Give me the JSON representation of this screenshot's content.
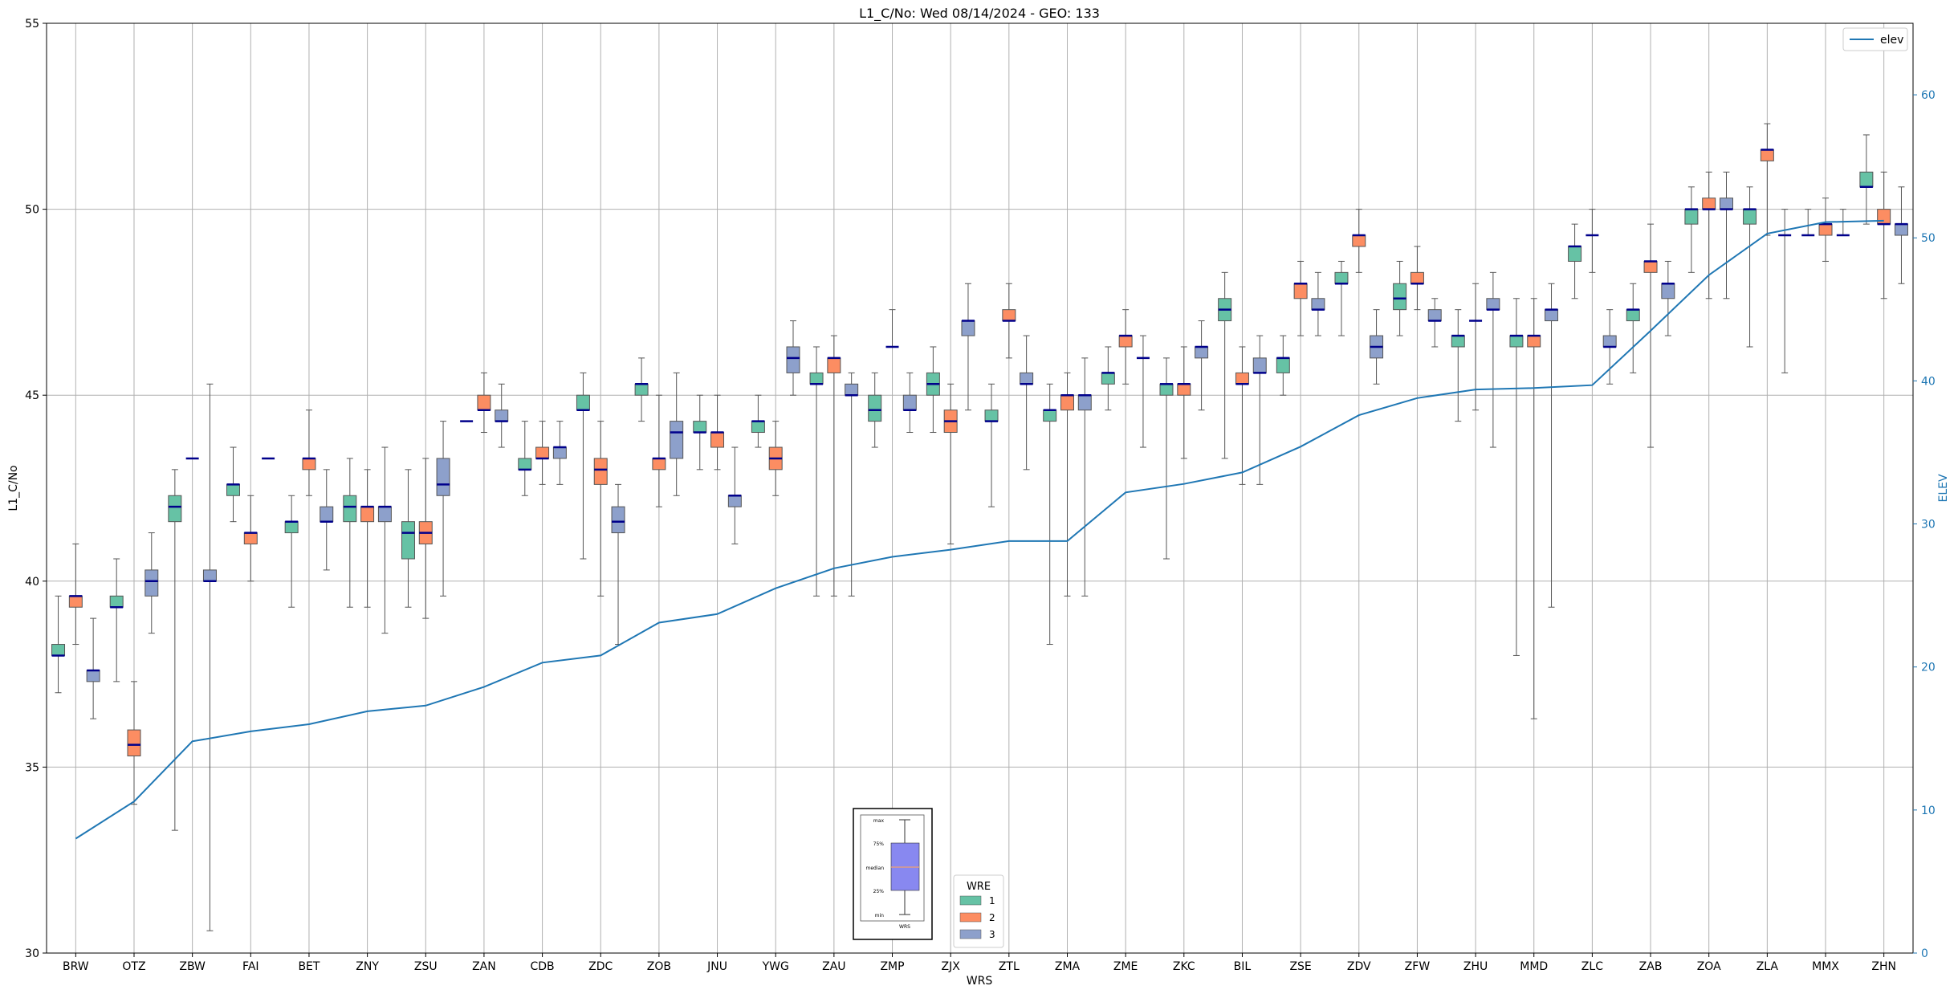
{
  "chart_data": {
    "type": "box",
    "title": "L1_C/No: Wed 08/14/2024 - GEO: 133",
    "xlabel": "WRS",
    "ylabel": "L1_C/No",
    "y2label": "ELEV",
    "ylim": [
      30,
      55
    ],
    "y2lim": [
      0,
      65
    ],
    "yticks": [
      30,
      35,
      40,
      45,
      50,
      55
    ],
    "y2ticks": [
      0,
      10,
      20,
      30,
      40,
      50,
      60
    ],
    "grid": true,
    "categories": [
      "BRW",
      "OTZ",
      "ZBW",
      "FAI",
      "BET",
      "ZNY",
      "ZSU",
      "ZAN",
      "CDB",
      "ZDC",
      "ZOB",
      "JNU",
      "YWG",
      "ZAU",
      "ZMP",
      "ZJX",
      "ZTL",
      "ZMA",
      "ZME",
      "ZKC",
      "BIL",
      "ZSE",
      "ZDV",
      "ZFW",
      "ZHU",
      "MMD",
      "ZLC",
      "ZAB",
      "ZOA",
      "ZLA",
      "MMX",
      "ZHN"
    ],
    "colors": {
      "wre1": "#66c2a5",
      "wre2": "#fc8d62",
      "wre3": "#8da0cb",
      "median": "#00008b",
      "elev": "#1f77b4"
    },
    "series": [
      {
        "name": "1",
        "boxes": [
          {
            "min": 37.0,
            "q1": 38.0,
            "median": 38.0,
            "q3": 38.3,
            "max": 39.6
          },
          {
            "min": 37.3,
            "q1": 39.3,
            "median": 39.3,
            "q3": 39.6,
            "max": 40.6
          },
          {
            "min": 33.3,
            "q1": 41.6,
            "median": 42.0,
            "q3": 42.3,
            "max": 43.0
          },
          {
            "min": 41.6,
            "q1": 42.3,
            "median": 42.6,
            "q3": 42.6,
            "max": 43.6
          },
          {
            "min": 39.3,
            "q1": 41.3,
            "median": 41.6,
            "q3": 41.6,
            "max": 42.3
          },
          {
            "min": 39.3,
            "q1": 41.6,
            "median": 42.0,
            "q3": 42.3,
            "max": 43.3
          },
          {
            "min": 39.3,
            "q1": 40.6,
            "median": 41.3,
            "q3": 41.6,
            "max": 43.0
          },
          {
            "min": 44.3,
            "q1": 44.3,
            "median": 44.3,
            "q3": 44.3,
            "max": 44.3
          },
          {
            "min": 42.3,
            "q1": 43.0,
            "median": 43.0,
            "q3": 43.3,
            "max": 44.3
          },
          {
            "min": 40.6,
            "q1": 44.6,
            "median": 44.6,
            "q3": 45.0,
            "max": 45.6
          },
          {
            "min": 44.3,
            "q1": 45.0,
            "median": 45.3,
            "q3": 45.3,
            "max": 46.0
          },
          {
            "min": 43.0,
            "q1": 44.0,
            "median": 44.0,
            "q3": 44.3,
            "max": 45.0
          },
          {
            "min": 43.6,
            "q1": 44.0,
            "median": 44.3,
            "q3": 44.3,
            "max": 45.0
          },
          {
            "min": 39.6,
            "q1": 45.3,
            "median": 45.3,
            "q3": 45.6,
            "max": 46.3
          },
          {
            "min": 43.6,
            "q1": 44.3,
            "median": 44.6,
            "q3": 45.0,
            "max": 45.6
          },
          {
            "min": 44.0,
            "q1": 45.0,
            "median": 45.3,
            "q3": 45.6,
            "max": 46.3
          },
          {
            "min": 42.0,
            "q1": 44.3,
            "median": 44.3,
            "q3": 44.6,
            "max": 45.3
          },
          {
            "min": 38.3,
            "q1": 44.3,
            "median": 44.6,
            "q3": 44.6,
            "max": 45.3
          },
          {
            "min": 44.6,
            "q1": 45.3,
            "median": 45.6,
            "q3": 45.6,
            "max": 46.3
          },
          {
            "min": 40.6,
            "q1": 45.0,
            "median": 45.3,
            "q3": 45.3,
            "max": 46.0
          },
          {
            "min": 43.3,
            "q1": 47.0,
            "median": 47.3,
            "q3": 47.6,
            "max": 48.3
          },
          {
            "min": 45.0,
            "q1": 45.6,
            "median": 46.0,
            "q3": 46.0,
            "max": 46.6
          },
          {
            "min": 46.6,
            "q1": 48.0,
            "median": 48.0,
            "q3": 48.3,
            "max": 48.6
          },
          {
            "min": 46.6,
            "q1": 47.3,
            "median": 47.6,
            "q3": 48.0,
            "max": 48.6
          },
          {
            "min": 44.3,
            "q1": 46.3,
            "median": 46.6,
            "q3": 46.6,
            "max": 47.3
          },
          {
            "min": 38.0,
            "q1": 46.3,
            "median": 46.6,
            "q3": 46.6,
            "max": 47.6
          },
          {
            "min": 47.6,
            "q1": 48.6,
            "median": 49.0,
            "q3": 49.0,
            "max": 49.6
          },
          {
            "min": 45.6,
            "q1": 47.0,
            "median": 47.3,
            "q3": 47.3,
            "max": 48.0
          },
          {
            "min": 48.3,
            "q1": 49.6,
            "median": 50.0,
            "q3": 50.0,
            "max": 50.6
          },
          {
            "min": 46.3,
            "q1": 49.6,
            "median": 50.0,
            "q3": 50.0,
            "max": 50.6
          },
          {
            "min": 49.3,
            "q1": 49.3,
            "median": 49.3,
            "q3": 49.3,
            "max": 50.0
          },
          {
            "min": 49.6,
            "q1": 50.6,
            "median": 50.6,
            "q3": 51.0,
            "max": 52.0
          }
        ]
      },
      {
        "name": "2",
        "boxes": [
          {
            "min": 38.3,
            "q1": 39.3,
            "median": 39.6,
            "q3": 39.6,
            "max": 41.0
          },
          {
            "min": 34.0,
            "q1": 35.3,
            "median": 35.6,
            "q3": 36.0,
            "max": 37.3
          },
          {
            "min": 43.3,
            "q1": 43.3,
            "median": 43.3,
            "q3": 43.3,
            "max": 43.3
          },
          {
            "min": 40.0,
            "q1": 41.0,
            "median": 41.3,
            "q3": 41.3,
            "max": 42.3
          },
          {
            "min": 42.3,
            "q1": 43.0,
            "median": 43.3,
            "q3": 43.3,
            "max": 44.6
          },
          {
            "min": 39.3,
            "q1": 41.6,
            "median": 42.0,
            "q3": 42.0,
            "max": 43.0
          },
          {
            "min": 39.0,
            "q1": 41.0,
            "median": 41.3,
            "q3": 41.6,
            "max": 43.3
          },
          {
            "min": 44.0,
            "q1": 44.6,
            "median": 44.6,
            "q3": 45.0,
            "max": 45.6
          },
          {
            "min": 42.6,
            "q1": 43.3,
            "median": 43.3,
            "q3": 43.6,
            "max": 44.3
          },
          {
            "min": 39.6,
            "q1": 42.6,
            "median": 43.0,
            "q3": 43.3,
            "max": 44.3
          },
          {
            "min": 42.0,
            "q1": 43.0,
            "median": 43.3,
            "q3": 43.3,
            "max": 45.0
          },
          {
            "min": 43.0,
            "q1": 43.6,
            "median": 44.0,
            "q3": 44.0,
            "max": 45.0
          },
          {
            "min": 42.3,
            "q1": 43.0,
            "median": 43.3,
            "q3": 43.6,
            "max": 44.3
          },
          {
            "min": 39.6,
            "q1": 45.6,
            "median": 46.0,
            "q3": 46.0,
            "max": 46.6
          },
          {
            "min": 46.3,
            "q1": 46.3,
            "median": 46.3,
            "q3": 46.3,
            "max": 47.3
          },
          {
            "min": 41.0,
            "q1": 44.0,
            "median": 44.3,
            "q3": 44.6,
            "max": 45.3
          },
          {
            "min": 46.0,
            "q1": 47.0,
            "median": 47.0,
            "q3": 47.3,
            "max": 48.0
          },
          {
            "min": 39.6,
            "q1": 44.6,
            "median": 45.0,
            "q3": 45.0,
            "max": 45.6
          },
          {
            "min": 45.3,
            "q1": 46.3,
            "median": 46.6,
            "q3": 46.6,
            "max": 47.3
          },
          {
            "min": 43.3,
            "q1": 45.0,
            "median": 45.3,
            "q3": 45.3,
            "max": 46.3
          },
          {
            "min": 42.6,
            "q1": 45.3,
            "median": 45.3,
            "q3": 45.6,
            "max": 46.3
          },
          {
            "min": 46.6,
            "q1": 47.6,
            "median": 48.0,
            "q3": 48.0,
            "max": 48.6
          },
          {
            "min": 48.3,
            "q1": 49.0,
            "median": 49.3,
            "q3": 49.3,
            "max": 50.0
          },
          {
            "min": 47.3,
            "q1": 48.0,
            "median": 48.0,
            "q3": 48.3,
            "max": 49.0
          },
          {
            "min": 44.6,
            "q1": 47.0,
            "median": 47.0,
            "q3": 47.0,
            "max": 48.0
          },
          {
            "min": 36.3,
            "q1": 46.3,
            "median": 46.6,
            "q3": 46.6,
            "max": 47.6
          },
          {
            "min": 48.3,
            "q1": 49.3,
            "median": 49.3,
            "q3": 49.3,
            "max": 50.0
          },
          {
            "min": 43.6,
            "q1": 48.3,
            "median": 48.6,
            "q3": 48.6,
            "max": 49.6
          },
          {
            "min": 47.6,
            "q1": 50.0,
            "median": 50.0,
            "q3": 50.3,
            "max": 51.0
          },
          {
            "min": 49.3,
            "q1": 51.3,
            "median": 51.6,
            "q3": 51.6,
            "max": 52.3
          },
          {
            "min": 48.6,
            "q1": 49.3,
            "median": 49.6,
            "q3": 49.6,
            "max": 50.3
          },
          {
            "min": 47.6,
            "q1": 49.6,
            "median": 49.6,
            "q3": 50.0,
            "max": 51.0
          }
        ]
      },
      {
        "name": "3",
        "boxes": [
          {
            "min": 36.3,
            "q1": 37.3,
            "median": 37.6,
            "q3": 37.6,
            "max": 39.0
          },
          {
            "min": 38.6,
            "q1": 39.6,
            "median": 40.0,
            "q3": 40.3,
            "max": 41.3
          },
          {
            "min": 30.6,
            "q1": 40.0,
            "median": 40.0,
            "q3": 40.3,
            "max": 45.3
          },
          {
            "min": 43.3,
            "q1": 43.3,
            "median": 43.3,
            "q3": 43.3,
            "max": 43.3
          },
          {
            "min": 40.3,
            "q1": 41.6,
            "median": 41.6,
            "q3": 42.0,
            "max": 43.0
          },
          {
            "min": 38.6,
            "q1": 41.6,
            "median": 42.0,
            "q3": 42.0,
            "max": 43.6
          },
          {
            "min": 39.6,
            "q1": 42.3,
            "median": 42.6,
            "q3": 43.3,
            "max": 44.3
          },
          {
            "min": 43.6,
            "q1": 44.3,
            "median": 44.3,
            "q3": 44.6,
            "max": 45.3
          },
          {
            "min": 42.6,
            "q1": 43.3,
            "median": 43.6,
            "q3": 43.6,
            "max": 44.3
          },
          {
            "min": 38.3,
            "q1": 41.3,
            "median": 41.6,
            "q3": 42.0,
            "max": 42.6
          },
          {
            "min": 42.3,
            "q1": 43.3,
            "median": 44.0,
            "q3": 44.3,
            "max": 45.6
          },
          {
            "min": 41.0,
            "q1": 42.0,
            "median": 42.3,
            "q3": 42.3,
            "max": 43.6
          },
          {
            "min": 45.0,
            "q1": 45.6,
            "median": 46.0,
            "q3": 46.3,
            "max": 47.0
          },
          {
            "min": 39.6,
            "q1": 45.0,
            "median": 45.0,
            "q3": 45.3,
            "max": 45.6
          },
          {
            "min": 44.0,
            "q1": 44.6,
            "median": 44.6,
            "q3": 45.0,
            "max": 45.6
          },
          {
            "min": 44.6,
            "q1": 46.6,
            "median": 47.0,
            "q3": 47.0,
            "max": 48.0
          },
          {
            "min": 43.0,
            "q1": 45.3,
            "median": 45.3,
            "q3": 45.6,
            "max": 46.6
          },
          {
            "min": 39.6,
            "q1": 44.6,
            "median": 45.0,
            "q3": 45.0,
            "max": 46.0
          },
          {
            "min": 43.6,
            "q1": 46.0,
            "median": 46.0,
            "q3": 46.0,
            "max": 46.6
          },
          {
            "min": 44.6,
            "q1": 46.0,
            "median": 46.3,
            "q3": 46.3,
            "max": 47.0
          },
          {
            "min": 42.6,
            "q1": 45.6,
            "median": 45.6,
            "q3": 46.0,
            "max": 46.6
          },
          {
            "min": 46.6,
            "q1": 47.3,
            "median": 47.3,
            "q3": 47.6,
            "max": 48.3
          },
          {
            "min": 45.3,
            "q1": 46.0,
            "median": 46.3,
            "q3": 46.6,
            "max": 47.3
          },
          {
            "min": 46.3,
            "q1": 47.0,
            "median": 47.0,
            "q3": 47.3,
            "max": 47.6
          },
          {
            "min": 43.6,
            "q1": 47.3,
            "median": 47.3,
            "q3": 47.6,
            "max": 48.3
          },
          {
            "min": 39.3,
            "q1": 47.0,
            "median": 47.3,
            "q3": 47.3,
            "max": 48.0
          },
          {
            "min": 45.3,
            "q1": 46.3,
            "median": 46.3,
            "q3": 46.6,
            "max": 47.3
          },
          {
            "min": 46.6,
            "q1": 47.6,
            "median": 48.0,
            "q3": 48.0,
            "max": 48.6
          },
          {
            "min": 47.6,
            "q1": 50.0,
            "median": 50.0,
            "q3": 50.3,
            "max": 51.0
          },
          {
            "min": 45.6,
            "q1": 49.3,
            "median": 49.3,
            "q3": 49.3,
            "max": 50.0
          },
          {
            "min": 49.3,
            "q1": 49.3,
            "median": 49.3,
            "q3": 49.3,
            "max": 50.0
          },
          {
            "min": 48.0,
            "q1": 49.3,
            "median": 49.6,
            "q3": 49.6,
            "max": 50.6
          }
        ]
      }
    ],
    "elev": {
      "name": "elev",
      "values": [
        8.0,
        10.6,
        14.8,
        15.5,
        16.0,
        16.9,
        17.3,
        18.6,
        20.3,
        20.8,
        23.1,
        23.7,
        25.5,
        26.9,
        27.7,
        28.2,
        28.8,
        28.8,
        32.2,
        32.8,
        33.6,
        35.4,
        37.6,
        38.8,
        39.4,
        39.5,
        39.7,
        43.5,
        47.4,
        50.3,
        51.1,
        51.2
      ]
    },
    "legend_wre": {
      "title": "WRE",
      "placement": "bottom-center",
      "entries": [
        "1",
        "2",
        "3"
      ]
    },
    "legend_elev": {
      "placement": "top-right",
      "entries": [
        "elev"
      ]
    },
    "key_inset": {
      "labels": [
        "max",
        "75%",
        "median",
        "25%",
        "min"
      ],
      "xlabel": "WRS"
    }
  }
}
